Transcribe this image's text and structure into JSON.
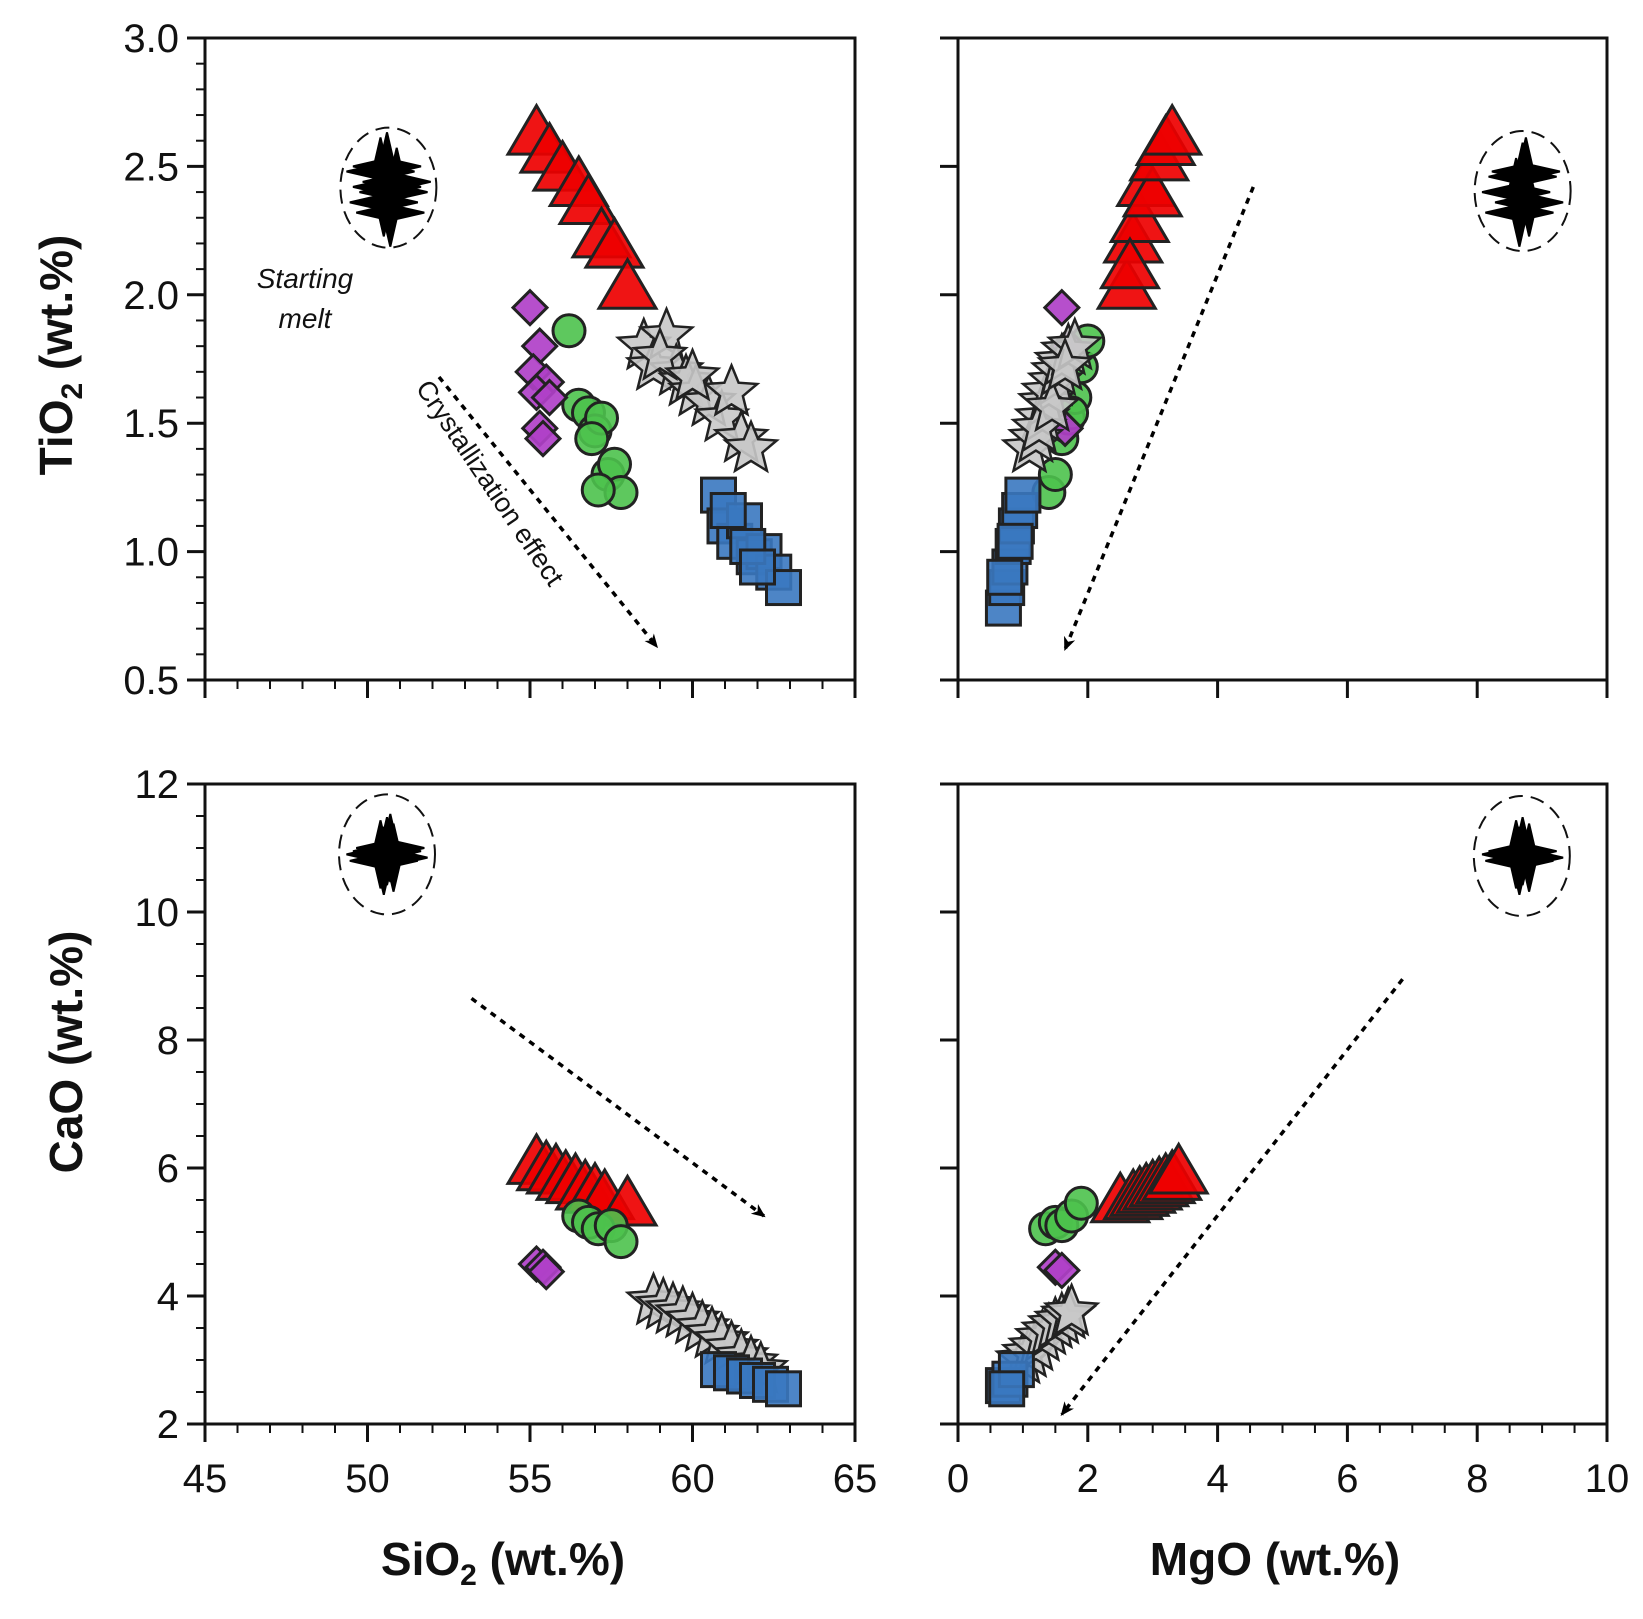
{
  "figure": {
    "y_titles": {
      "tio2": {
        "main": "TiO",
        "sub": "2",
        "tail": " (wt.%)"
      },
      "cao": {
        "main": "CaO (wt.%)",
        "sub": "",
        "tail": ""
      }
    },
    "x_titles": {
      "sio2": {
        "main": "SiO",
        "sub": "2",
        "tail": " (wt.%)"
      },
      "mgo": {
        "main": "MgO (wt.%)",
        "sub": "",
        "tail": ""
      }
    },
    "annotations": {
      "starting_melt_line1": "Starting",
      "starting_melt_line2": "melt",
      "crystallization": "Crystallization effect"
    }
  },
  "colors": {
    "triangle": "#ee0000",
    "star": "#c8c8c8",
    "circle": "#4cc24c",
    "diamond": "#b040c8",
    "square": "#3a78c0",
    "starting": "#000000"
  },
  "chart_data": [
    {
      "id": "tio2_vs_sio2",
      "type": "scatter",
      "title": "",
      "xlabel": "SiO2 (wt.%)",
      "ylabel": "TiO2 (wt.%)",
      "xlim": [
        45,
        65
      ],
      "ylim": [
        0.5,
        3.0
      ],
      "xticks": [],
      "yticks": [
        "0.5",
        "1.0",
        "1.5",
        "2.0",
        "2.5",
        "3.0"
      ],
      "series": [
        {
          "name": "triangle",
          "x": [
            55.2,
            55.6,
            56.0,
            56.5,
            56.8,
            57.2,
            57.6,
            58.0
          ],
          "y": [
            2.62,
            2.55,
            2.48,
            2.42,
            2.35,
            2.22,
            2.18,
            2.02
          ]
        },
        {
          "name": "star",
          "x": [
            58.5,
            58.8,
            59.2,
            59.5,
            59.8,
            60.1,
            60.5,
            60.9,
            61.2,
            61.5,
            61.8,
            59.0,
            60.0
          ],
          "y": [
            1.8,
            1.72,
            1.84,
            1.7,
            1.66,
            1.62,
            1.58,
            1.52,
            1.62,
            1.44,
            1.4,
            1.76,
            1.68
          ]
        },
        {
          "name": "circle",
          "x": [
            56.2,
            56.5,
            56.8,
            57.0,
            57.2,
            57.4,
            57.6,
            57.8,
            56.9,
            57.1
          ],
          "y": [
            1.86,
            1.57,
            1.54,
            1.47,
            1.52,
            1.3,
            1.34,
            1.23,
            1.44,
            1.24
          ]
        },
        {
          "name": "diamond",
          "x": [
            55.0,
            55.3,
            55.1,
            55.5,
            55.2,
            55.6,
            55.3,
            55.4
          ],
          "y": [
            1.95,
            1.8,
            1.7,
            1.66,
            1.62,
            1.6,
            1.48,
            1.44
          ]
        },
        {
          "name": "square",
          "x": [
            60.8,
            61.0,
            61.3,
            61.6,
            61.9,
            62.2,
            62.5,
            62.8,
            61.1,
            61.7,
            62.0
          ],
          "y": [
            1.22,
            1.1,
            1.04,
            1.12,
            0.98,
            1.0,
            0.92,
            0.86,
            1.16,
            1.02,
            0.94
          ]
        },
        {
          "name": "starting",
          "x": [
            50.4,
            50.6,
            50.8,
            50.5,
            50.9,
            50.7,
            50.6
          ],
          "y": [
            2.48,
            2.42,
            2.4,
            2.36,
            2.44,
            2.32,
            2.5
          ]
        }
      ]
    },
    {
      "id": "tio2_vs_mgo",
      "type": "scatter",
      "title": "",
      "xlabel": "MgO (wt.%)",
      "ylabel": "TiO2 (wt.%)",
      "xlim": [
        0,
        10
      ],
      "ylim": [
        0.5,
        3.0
      ],
      "xticks": [],
      "yticks": [],
      "series": [
        {
          "name": "triangle",
          "x": [
            2.6,
            2.7,
            2.8,
            2.9,
            3.0,
            3.1,
            3.2,
            3.3,
            2.65
          ],
          "y": [
            2.02,
            2.2,
            2.28,
            2.42,
            2.38,
            2.52,
            2.58,
            2.62,
            2.1
          ]
        },
        {
          "name": "circle",
          "x": [
            1.4,
            1.5,
            1.6,
            1.7,
            1.8,
            1.9,
            2.0,
            1.75
          ],
          "y": [
            1.23,
            1.3,
            1.44,
            1.52,
            1.6,
            1.72,
            1.82,
            1.54
          ]
        },
        {
          "name": "diamond",
          "x": [
            1.6,
            1.7,
            1.55,
            1.65
          ],
          "y": [
            1.95,
            1.8,
            1.66,
            1.48
          ]
        },
        {
          "name": "star",
          "x": [
            1.1,
            1.2,
            1.3,
            1.35,
            1.4,
            1.5,
            1.55,
            1.6,
            1.7,
            1.8,
            1.25,
            1.45,
            1.65
          ],
          "y": [
            1.4,
            1.44,
            1.52,
            1.58,
            1.62,
            1.66,
            1.7,
            1.74,
            1.78,
            1.8,
            1.48,
            1.56,
            1.72
          ]
        },
        {
          "name": "square",
          "x": [
            0.7,
            0.75,
            0.8,
            0.85,
            0.9,
            0.95,
            1.0,
            0.72,
            0.88
          ],
          "y": [
            0.78,
            0.86,
            0.94,
            1.02,
            1.1,
            1.16,
            1.22,
            0.9,
            1.04
          ]
        },
        {
          "name": "starting",
          "x": [
            8.6,
            8.7,
            8.8,
            8.65,
            8.75
          ],
          "y": [
            2.4,
            2.46,
            2.36,
            2.32,
            2.48
          ]
        }
      ]
    },
    {
      "id": "cao_vs_sio2",
      "type": "scatter",
      "title": "",
      "xlabel": "SiO2 (wt.%)",
      "ylabel": "CaO (wt.%)",
      "xlim": [
        45,
        65
      ],
      "ylim": [
        2,
        12
      ],
      "xticks": [
        "45",
        "50",
        "55",
        "60",
        "65"
      ],
      "yticks": [
        "2",
        "4",
        "6",
        "8",
        "10",
        "12"
      ],
      "series": [
        {
          "name": "triangle",
          "x": [
            55.2,
            55.5,
            55.8,
            56.1,
            56.4,
            56.7,
            57.0,
            57.3,
            58.0
          ],
          "y": [
            6.05,
            5.95,
            5.9,
            5.8,
            5.75,
            5.65,
            5.6,
            5.5,
            5.4
          ]
        },
        {
          "name": "circle",
          "x": [
            56.5,
            56.8,
            57.1,
            57.5,
            57.8
          ],
          "y": [
            5.25,
            5.15,
            5.05,
            5.1,
            4.85
          ]
        },
        {
          "name": "diamond",
          "x": [
            55.2,
            55.4,
            55.5
          ],
          "y": [
            4.5,
            4.45,
            4.38
          ]
        },
        {
          "name": "star",
          "x": [
            58.8,
            59.1,
            59.4,
            59.7,
            60.0,
            60.3,
            60.6,
            60.9,
            61.2,
            61.5,
            61.8,
            62.1
          ],
          "y": [
            3.92,
            3.85,
            3.78,
            3.72,
            3.62,
            3.5,
            3.4,
            3.3,
            3.18,
            3.05,
            2.95,
            2.85
          ]
        },
        {
          "name": "square",
          "x": [
            60.8,
            61.2,
            61.6,
            62.0,
            62.4,
            62.8
          ],
          "y": [
            2.85,
            2.8,
            2.75,
            2.68,
            2.62,
            2.55
          ]
        },
        {
          "name": "starting",
          "x": [
            50.4,
            50.6,
            50.8,
            50.5,
            50.7
          ],
          "y": [
            10.9,
            10.95,
            10.85,
            10.8,
            11.0
          ]
        }
      ]
    },
    {
      "id": "cao_vs_mgo",
      "type": "scatter",
      "title": "",
      "xlabel": "MgO (wt.%)",
      "ylabel": "CaO (wt.%)",
      "xlim": [
        0,
        10
      ],
      "ylim": [
        2,
        12
      ],
      "xticks": [
        "0",
        "2",
        "4",
        "6",
        "8",
        "10"
      ],
      "yticks": [],
      "series": [
        {
          "name": "triangle",
          "x": [
            2.5,
            2.7,
            2.8,
            2.9,
            3.0,
            3.1,
            3.2,
            3.3,
            3.4
          ],
          "y": [
            5.45,
            5.5,
            5.55,
            5.6,
            5.65,
            5.7,
            5.75,
            5.8,
            5.9
          ]
        },
        {
          "name": "circle",
          "x": [
            1.35,
            1.5,
            1.6,
            1.75,
            1.9
          ],
          "y": [
            5.05,
            5.15,
            5.1,
            5.25,
            5.45
          ]
        },
        {
          "name": "diamond",
          "x": [
            1.5,
            1.6
          ],
          "y": [
            4.45,
            4.4
          ]
        },
        {
          "name": "star",
          "x": [
            1.0,
            1.1,
            1.2,
            1.3,
            1.4,
            1.5,
            1.6,
            1.7,
            1.75
          ],
          "y": [
            3.0,
            3.1,
            3.2,
            3.35,
            3.45,
            3.55,
            3.62,
            3.7,
            3.75
          ]
        },
        {
          "name": "square",
          "x": [
            0.7,
            0.8,
            0.9,
            0.75
          ],
          "y": [
            2.6,
            2.7,
            2.85,
            2.55
          ]
        },
        {
          "name": "starting",
          "x": [
            8.6,
            8.7,
            8.8,
            8.65
          ],
          "y": [
            10.9,
            10.95,
            10.85,
            10.8
          ]
        }
      ]
    }
  ]
}
